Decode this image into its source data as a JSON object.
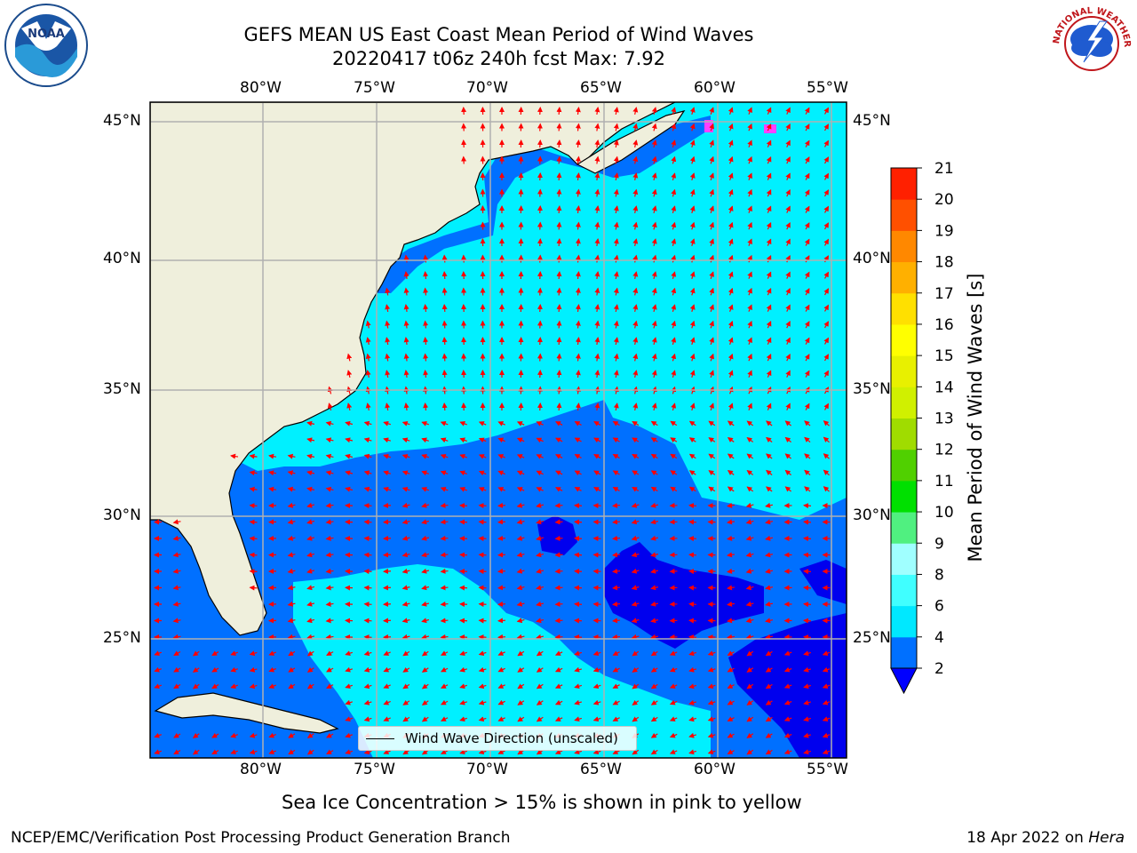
{
  "header": {
    "title_line1": "GEFS MEAN US East Coast Mean Period of Wind Waves",
    "title_line2": "20220417 t06z 240h fcst   Max: 7.92"
  },
  "map": {
    "lon_ticks": [
      "80°W",
      "75°W",
      "70°W",
      "65°W",
      "60°W",
      "55°W"
    ],
    "lat_ticks": [
      "45°N",
      "40°N",
      "35°N",
      "30°N",
      "25°N"
    ],
    "legend_label": "Wind Wave Direction (unscaled)",
    "vector_color": "#ff0000",
    "land_color": "#efefdc"
  },
  "chart_data": {
    "type": "heatmap",
    "title": "GEFS MEAN US East Coast Mean Period of Wind Waves",
    "subtitle": "20220417 t06z 240h fcst   Max: 7.92",
    "max_value": 7.92,
    "x_axis": {
      "label": "",
      "range": [
        -85,
        -55
      ],
      "ticks": [
        -80,
        -75,
        -70,
        -65,
        -60,
        -55
      ]
    },
    "y_axis": {
      "label": "",
      "range": [
        20.5,
        46
      ],
      "ticks": [
        45,
        40,
        35,
        30,
        25
      ]
    },
    "colorbar": {
      "label": "Mean Period of Wind Waves [s]",
      "levels": [
        2,
        4,
        6,
        8,
        9,
        10,
        11,
        12,
        13,
        14,
        15,
        16,
        17,
        18,
        19,
        20,
        21
      ],
      "colors": [
        "#0070ff",
        "#00e8ff",
        "#40ffff",
        "#a0ffff",
        "#50f080",
        "#00e000",
        "#50d000",
        "#a0dc00",
        "#d0f000",
        "#e8f000",
        "#ffff00",
        "#ffe000",
        "#ffb000",
        "#ff8800",
        "#ff5000",
        "#ff2000",
        "#ff0000"
      ],
      "under_color": "#0000ff",
      "extend": "min"
    },
    "grid": true,
    "legend": "bottom-center"
  },
  "footer": {
    "note": "Sea Ice Concentration > 15% is shown in pink to yellow",
    "producer": "NCEP/EMC/Verification Post Processing Product Generation Branch",
    "date_prefix": "18 Apr 2022 on ",
    "machine": "Hera"
  },
  "logos": {
    "noaa_text": "NOAA",
    "nws_text": "NATIONAL WEATHER SERVICE"
  }
}
